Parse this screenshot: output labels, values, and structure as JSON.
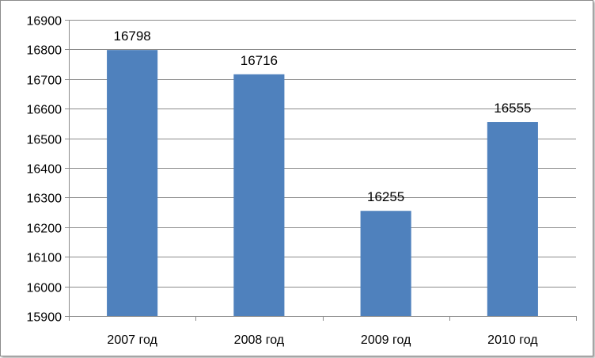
{
  "chart_data": {
    "type": "bar",
    "categories": [
      "2007 год",
      "2008 год",
      "2009 год",
      "2010 год"
    ],
    "values": [
      16798,
      16716,
      16255,
      16555
    ],
    "data_labels": [
      "16798",
      "16716",
      "16255",
      "16555"
    ],
    "title": "",
    "xlabel": "",
    "ylabel": "",
    "ylim": [
      15900,
      16900
    ],
    "yticks": [
      15900,
      16000,
      16100,
      16200,
      16300,
      16400,
      16500,
      16600,
      16700,
      16800,
      16900
    ],
    "ytick_labels": [
      "15900",
      "16000",
      "16100",
      "16200",
      "16300",
      "16400",
      "16500",
      "16600",
      "16700",
      "16800",
      "16900"
    ],
    "grid": true,
    "legend": "none",
    "bar_color": "#4f81bd",
    "grid_color": "#8c8c8c"
  }
}
